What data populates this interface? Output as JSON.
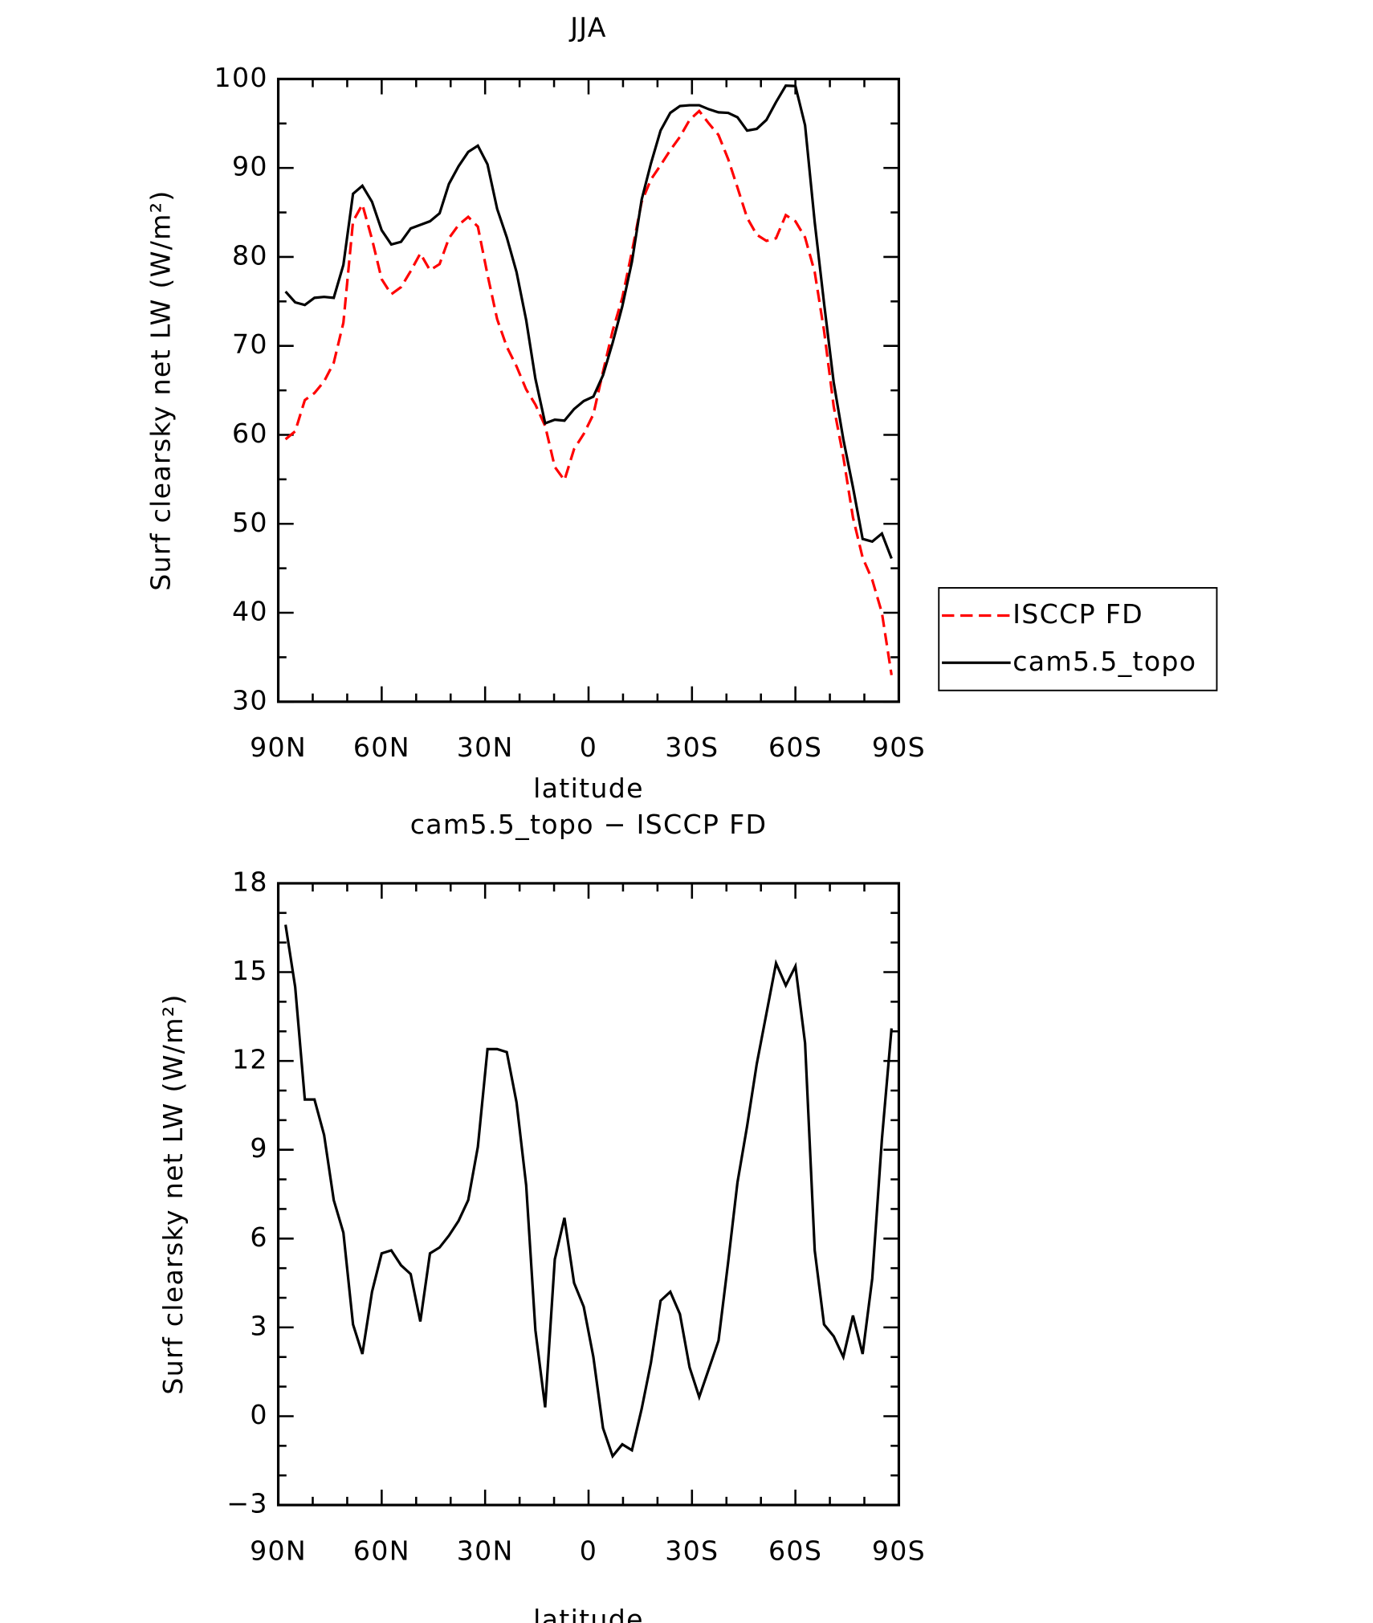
{
  "chart_data": [
    {
      "type": "line",
      "title": "JJA",
      "x_label": "latitude",
      "y_label": "Surf clearsky net LW (W/m²)",
      "x": [
        87.9,
        85.1,
        82.3,
        79.5,
        76.7,
        73.9,
        71.1,
        68.3,
        65.6,
        62.8,
        60.0,
        57.2,
        54.4,
        51.6,
        48.8,
        46.0,
        43.2,
        40.5,
        37.7,
        34.9,
        32.1,
        29.3,
        26.5,
        23.7,
        20.9,
        18.1,
        15.4,
        12.6,
        9.8,
        7.0,
        4.2,
        1.4,
        -1.4,
        -4.2,
        -7.0,
        -9.8,
        -12.6,
        -15.4,
        -18.1,
        -20.9,
        -23.7,
        -26.5,
        -29.3,
        -32.1,
        -34.9,
        -37.7,
        -40.5,
        -43.2,
        -46.0,
        -48.8,
        -51.6,
        -54.4,
        -57.2,
        -60.0,
        -62.8,
        -65.6,
        -68.3,
        -71.1,
        -73.9,
        -76.7,
        -79.5,
        -82.3,
        -85.1,
        -87.9
      ],
      "xlim": [
        90,
        -90
      ],
      "xticks": [
        {
          "value": 90,
          "label": "90N"
        },
        {
          "value": 60,
          "label": "60N"
        },
        {
          "value": 30,
          "label": "30N"
        },
        0,
        {
          "value": -30,
          "label": "30S"
        },
        {
          "value": -60,
          "label": "60S"
        },
        {
          "value": -90,
          "label": "90S"
        }
      ],
      "ylim": [
        30,
        100
      ],
      "yticks": [
        30,
        40,
        50,
        60,
        70,
        80,
        90,
        100
      ],
      "legend": "right",
      "series": [
        {
          "name": "ISCCP FD",
          "color": "#ff0000",
          "line_style": "dashed",
          "values": [
            59.5,
            60.4,
            63.9,
            64.7,
            66.0,
            68.1,
            72.6,
            84.0,
            85.9,
            82.0,
            77.5,
            75.8,
            76.6,
            78.4,
            80.4,
            78.5,
            79.2,
            82.1,
            83.6,
            84.5,
            83.4,
            78.0,
            73.0,
            69.9,
            67.7,
            65.1,
            63.4,
            61.0,
            56.4,
            54.9,
            58.4,
            60.1,
            62.3,
            67.1,
            71.7,
            75.4,
            80.6,
            86.2,
            88.7,
            90.3,
            92.0,
            93.5,
            95.4,
            96.4,
            95.0,
            93.7,
            91.0,
            87.8,
            84.4,
            82.5,
            81.8,
            82.1,
            84.7,
            84.0,
            82.2,
            78.3,
            71.7,
            63.2,
            57.5,
            50.7,
            46.2,
            43.7,
            40.0,
            33.0
          ]
        },
        {
          "name": "cam5.5_topo",
          "color": "#000000",
          "line_style": "solid",
          "values": [
            76.1,
            74.9,
            74.6,
            75.4,
            75.5,
            75.4,
            79.1,
            87.1,
            88.0,
            86.2,
            83.0,
            81.4,
            81.7,
            83.2,
            83.6,
            84.0,
            84.9,
            88.2,
            90.2,
            91.8,
            92.5,
            90.4,
            85.4,
            82.2,
            78.3,
            72.9,
            66.3,
            61.3,
            61.7,
            61.6,
            62.9,
            63.8,
            64.3,
            66.7,
            70.35,
            74.45,
            79.45,
            86.45,
            90.5,
            94.2,
            96.2,
            96.95,
            97.05,
            97.05,
            96.6,
            96.25,
            96.2,
            95.7,
            94.2,
            94.4,
            95.4,
            97.4,
            99.25,
            99.2,
            94.8,
            83.9,
            74.8,
            65.9,
            59.5,
            54.1,
            48.3,
            48.0,
            48.9,
            46.1
          ]
        }
      ]
    },
    {
      "type": "line",
      "title": "cam5.5_topo − ISCCP FD",
      "x_label": "latitude",
      "y_label": "Surf clearsky net LW (W/m²)",
      "x": [
        87.9,
        85.1,
        82.3,
        79.5,
        76.7,
        73.9,
        71.1,
        68.3,
        65.6,
        62.8,
        60.0,
        57.2,
        54.4,
        51.6,
        48.8,
        46.0,
        43.2,
        40.5,
        37.7,
        34.9,
        32.1,
        29.3,
        26.5,
        23.7,
        20.9,
        18.1,
        15.4,
        12.6,
        9.8,
        7.0,
        4.2,
        1.4,
        -1.4,
        -4.2,
        -7.0,
        -9.8,
        -12.6,
        -15.4,
        -18.1,
        -20.9,
        -23.7,
        -26.5,
        -29.3,
        -32.1,
        -34.9,
        -37.7,
        -40.5,
        -43.2,
        -46.0,
        -48.8,
        -51.6,
        -54.4,
        -57.2,
        -60.0,
        -62.8,
        -65.6,
        -68.3,
        -71.1,
        -73.9,
        -76.7,
        -79.5,
        -82.3,
        -85.1,
        -87.9
      ],
      "xlim": [
        90,
        -90
      ],
      "xticks": [
        {
          "value": 90,
          "label": "90N"
        },
        {
          "value": 60,
          "label": "60N"
        },
        {
          "value": 30,
          "label": "30N"
        },
        0,
        {
          "value": -30,
          "label": "30S"
        },
        {
          "value": -60,
          "label": "60S"
        },
        {
          "value": -90,
          "label": "90S"
        }
      ],
      "ylim": [
        -3,
        18
      ],
      "yticks": [
        {
          "value": -3,
          "label": "−3"
        },
        0,
        3,
        6,
        9,
        12,
        15,
        18
      ],
      "series": [
        {
          "color": "#000000",
          "line_style": "solid",
          "values": [
            16.6,
            14.5,
            10.7,
            10.7,
            9.5,
            7.3,
            6.2,
            3.1,
            2.1,
            4.2,
            5.5,
            5.6,
            5.1,
            4.8,
            3.2,
            5.5,
            5.7,
            6.1,
            6.6,
            7.3,
            9.1,
            12.4,
            12.4,
            12.3,
            10.6,
            7.8,
            2.9,
            0.3,
            5.3,
            6.7,
            4.5,
            3.7,
            2.0,
            -0.4,
            -1.35,
            -0.95,
            -1.15,
            0.25,
            1.8,
            3.9,
            4.2,
            3.45,
            1.65,
            0.65,
            1.6,
            2.55,
            5.2,
            7.9,
            9.8,
            11.9,
            13.6,
            15.3,
            14.55,
            15.2,
            12.6,
            5.6,
            3.1,
            2.7,
            2.0,
            3.4,
            2.1,
            4.65,
            9.35,
            13.1
          ]
        }
      ]
    }
  ]
}
